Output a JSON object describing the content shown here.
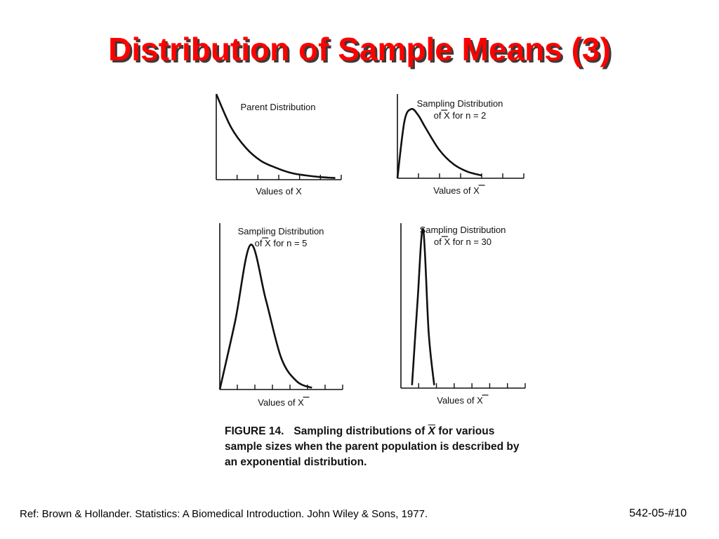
{
  "slide": {
    "title": "Distribution of Sample Means (3)",
    "reference": "Ref: Brown & Hollander. Statistics: A Biomedical Introduction. John Wiley & Sons, 1977.",
    "slide_number": "542-05-#10"
  },
  "caption": {
    "figure_label": "FIGURE 14.",
    "text_before": "Sampling distributions of",
    "symbol": "X",
    "text_after": "for various sample sizes when the parent population is described by an exponential distribution."
  },
  "chart_data": [
    {
      "type": "line",
      "title_lines": [
        "Parent Distribution"
      ],
      "xlabel": "Values of X",
      "xlabel_bar": false,
      "distribution": "exponential",
      "x_ticks": 6,
      "curve": {
        "x": [
          0,
          0.5,
          1,
          1.5,
          2,
          2.5,
          3,
          3.5,
          4
        ],
        "y": [
          1.0,
          0.61,
          0.37,
          0.22,
          0.14,
          0.08,
          0.05,
          0.03,
          0.02
        ]
      }
    },
    {
      "type": "line",
      "title_lines": [
        "Sampling Distribution",
        "of X for n = 2"
      ],
      "xlabel": "Values of X",
      "xlabel_bar": true,
      "n": 2,
      "x_ticks": 6,
      "curve": {
        "x": [
          0,
          0.25,
          0.5,
          0.75,
          1,
          1.5,
          2,
          2.5,
          3
        ],
        "y": [
          0,
          0.61,
          0.74,
          0.67,
          0.54,
          0.3,
          0.15,
          0.07,
          0.03
        ]
      }
    },
    {
      "type": "line",
      "title_lines": [
        "Sampling Distribution",
        "of X for n = 5"
      ],
      "xlabel": "Values of X",
      "xlabel_bar": true,
      "n": 5,
      "x_ticks": 7,
      "curve": {
        "x": [
          0,
          0.4,
          0.8,
          1.2,
          1.6,
          2.0,
          2.4
        ],
        "y": [
          0,
          0.41,
          0.87,
          0.54,
          0.19,
          0.05,
          0.01
        ]
      }
    },
    {
      "type": "line",
      "title_lines": [
        "Sampling Distribution",
        "of X for n = 30"
      ],
      "xlabel": "Values of X",
      "xlabel_bar": true,
      "n": 30,
      "x_ticks": 7,
      "curve": {
        "x": [
          0.5,
          0.75,
          1.0,
          1.25,
          1.5
        ],
        "y": [
          0.04,
          1.19,
          2.17,
          0.76,
          0.04
        ]
      }
    }
  ]
}
